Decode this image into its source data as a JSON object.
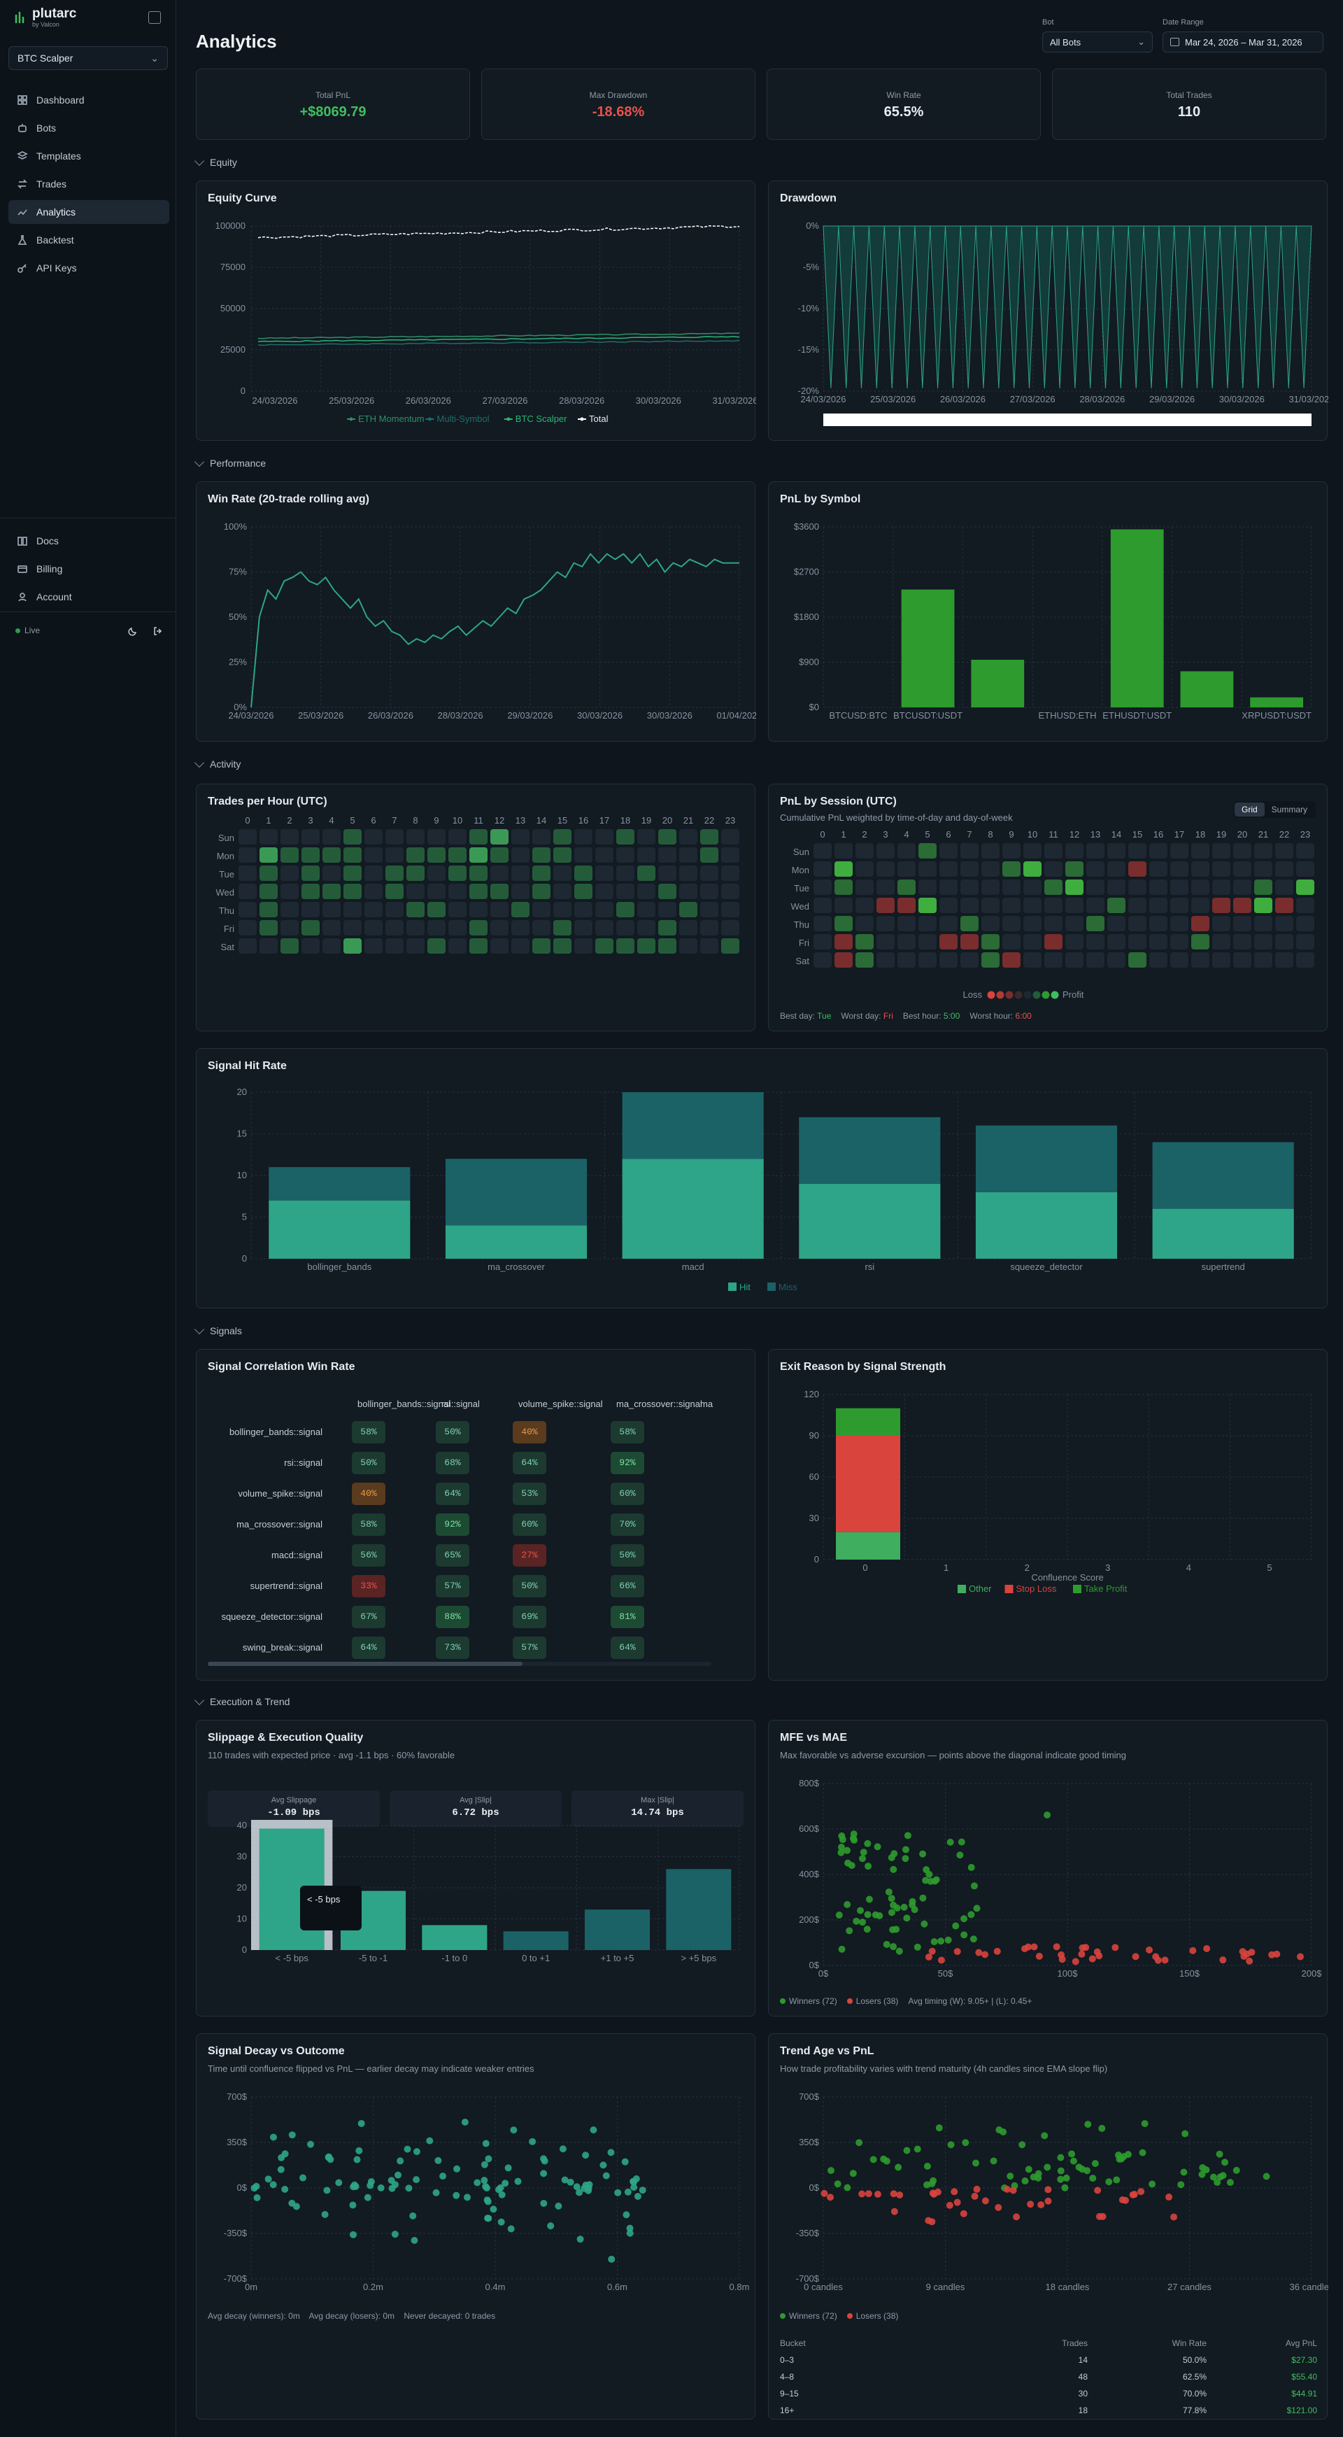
{
  "app": {
    "name": "plutarc",
    "subtitle": "by Valcon"
  },
  "sidebar": {
    "bot_select": "BTC Scalper",
    "nav": [
      {
        "label": "Dashboard",
        "icon": "grid-icon"
      },
      {
        "label": "Bots",
        "icon": "bot-icon"
      },
      {
        "label": "Templates",
        "icon": "layers-icon"
      },
      {
        "label": "Trades",
        "icon": "swap-icon"
      },
      {
        "label": "Analytics",
        "icon": "trend-icon",
        "active": true
      },
      {
        "label": "Backtest",
        "icon": "flask-icon"
      },
      {
        "label": "API Keys",
        "icon": "key-icon"
      }
    ],
    "bottom_nav": [
      {
        "label": "Docs",
        "icon": "book-icon"
      },
      {
        "label": "Billing",
        "icon": "card-icon"
      },
      {
        "label": "Account",
        "icon": "user-icon"
      }
    ],
    "status": "Live"
  },
  "header": {
    "title": "Analytics",
    "bot_label": "Bot",
    "bot_value": "All Bots",
    "date_label": "Date Range",
    "date_value": "Mar 24, 2026 – Mar 31, 2026"
  },
  "kpis": [
    {
      "label": "Total PnL",
      "value": "+$8069.79",
      "color": "#3fbf5f"
    },
    {
      "label": "Max Drawdown",
      "value": "-18.68%",
      "color": "#e5534b"
    },
    {
      "label": "Win Rate",
      "value": "65.5%",
      "color": "#e8edf2"
    },
    {
      "label": "Total Trades",
      "value": "110",
      "color": "#e8edf2"
    }
  ],
  "sections": {
    "equity": "Equity",
    "performance": "Performance",
    "activity": "Activity",
    "signals": "Signals",
    "execution": "Execution & Trend"
  },
  "equity_card": {
    "title": "Equity Curve",
    "chart_data": {
      "type": "line",
      "x_ticks": [
        "24/03/2026",
        "25/03/2026",
        "26/03/2026",
        "27/03/2026",
        "28/03/2026",
        "30/03/2026",
        "31/03/2026"
      ],
      "y_ticks": [
        "0",
        "25000",
        "50000",
        "75000",
        "100000"
      ],
      "ylim": [
        0,
        100000
      ],
      "series": [
        {
          "name": "ETH Momentum",
          "color": "#2f8f6b",
          "start": 32000,
          "end": 35000
        },
        {
          "name": "Multi-Symbol",
          "color": "#1f6e66",
          "start": 28000,
          "end": 30500
        },
        {
          "name": "BTC Scalper",
          "color": "#2bb673",
          "start": 30000,
          "end": 33000
        },
        {
          "name": "Total",
          "color": "#ffffff",
          "start": 93000,
          "end": 100000
        }
      ]
    }
  },
  "drawdown_card": {
    "title": "Drawdown",
    "chart_data": {
      "type": "area",
      "x_ticks": [
        "24/03/2026",
        "25/03/2026",
        "26/03/2026",
        "27/03/2026",
        "28/03/2026",
        "29/03/2026",
        "30/03/2026",
        "31/03/2026"
      ],
      "y_ticks": [
        "0%",
        "-5%",
        "-10%",
        "-15%",
        "-20%"
      ],
      "ylim": [
        -20,
        0
      ],
      "cycles": 32
    }
  },
  "winrate_card": {
    "title": "Win Rate (20-trade rolling avg)",
    "chart_data": {
      "type": "line",
      "x_ticks": [
        "24/03/2026",
        "25/03/2026",
        "26/03/2026",
        "28/03/2026",
        "29/03/2026",
        "30/03/2026",
        "30/03/2026",
        "01/04/2026"
      ],
      "y_ticks": [
        "0%",
        "25%",
        "50%",
        "75%",
        "100%"
      ],
      "ylim": [
        0,
        100
      ],
      "values": [
        0,
        50,
        65,
        60,
        70,
        72,
        75,
        70,
        68,
        72,
        65,
        60,
        55,
        60,
        50,
        45,
        48,
        42,
        40,
        35,
        38,
        36,
        40,
        38,
        42,
        45,
        40,
        44,
        48,
        45,
        50,
        55,
        52,
        60,
        62,
        65,
        70,
        75,
        72,
        80,
        78,
        85,
        80,
        85,
        82,
        85,
        80,
        85,
        78,
        82,
        75,
        80,
        78,
        82,
        80,
        78,
        82,
        80,
        80,
        80
      ]
    }
  },
  "pnl_symbol_card": {
    "title": "PnL by Symbol",
    "chart_data": {
      "type": "bar",
      "categories": [
        "BTCUSD:BTC",
        "BTCUSDT:USDT",
        "",
        "ETHUSD:ETH",
        "ETHUSDT:USDT",
        "",
        "XRPUSDT:USDT"
      ],
      "values": [
        0,
        2350,
        950,
        0,
        3550,
        720,
        200
      ],
      "y_ticks": [
        "$0",
        "$900",
        "$1800",
        "$2700",
        "$3600"
      ],
      "ylim": [
        0,
        3600
      ]
    }
  },
  "trades_hour_card": {
    "title": "Trades per Hour (UTC)",
    "hours": [
      "0",
      "1",
      "2",
      "3",
      "4",
      "5",
      "6",
      "7",
      "8",
      "9",
      "10",
      "11",
      "12",
      "13",
      "14",
      "15",
      "16",
      "17",
      "18",
      "19",
      "20",
      "21",
      "22",
      "23"
    ],
    "days": [
      "Sun",
      "Mon",
      "Tue",
      "Wed",
      "Thu",
      "Fri",
      "Sat"
    ],
    "chart_data": {
      "type": "heatmap",
      "values": [
        [
          0,
          0,
          0,
          0,
          0,
          1,
          0,
          0,
          0,
          0,
          0,
          1,
          2,
          0,
          0,
          1,
          0,
          0,
          1,
          0,
          1,
          0,
          1,
          0
        ],
        [
          0,
          2,
          1,
          1,
          1,
          1,
          0,
          0,
          1,
          1,
          1,
          2,
          1,
          0,
          1,
          1,
          0,
          0,
          0,
          0,
          0,
          0,
          1,
          0
        ],
        [
          0,
          1,
          0,
          1,
          0,
          1,
          0,
          1,
          1,
          0,
          1,
          1,
          0,
          0,
          1,
          0,
          1,
          0,
          0,
          1,
          0,
          0,
          0,
          0
        ],
        [
          0,
          1,
          0,
          1,
          1,
          1,
          0,
          1,
          0,
          0,
          0,
          1,
          1,
          0,
          1,
          0,
          1,
          0,
          0,
          0,
          1,
          0,
          0,
          0
        ],
        [
          0,
          1,
          0,
          0,
          0,
          0,
          0,
          0,
          1,
          1,
          0,
          0,
          0,
          1,
          0,
          0,
          0,
          0,
          1,
          0,
          0,
          1,
          0,
          0
        ],
        [
          0,
          1,
          0,
          1,
          0,
          0,
          0,
          0,
          0,
          0,
          0,
          1,
          0,
          0,
          0,
          1,
          0,
          0,
          0,
          0,
          1,
          0,
          0,
          0
        ],
        [
          0,
          0,
          1,
          0,
          0,
          2,
          0,
          0,
          0,
          1,
          0,
          1,
          0,
          0,
          1,
          1,
          0,
          1,
          1,
          1,
          1,
          0,
          0,
          1
        ]
      ]
    }
  },
  "session_card": {
    "title": "PnL by Session (UTC)",
    "subtitle": "Cumulative PnL weighted by time-of-day and day-of-week",
    "toggle": [
      "Grid",
      "Summary"
    ],
    "hours": [
      "0",
      "1",
      "2",
      "3",
      "4",
      "5",
      "6",
      "7",
      "8",
      "9",
      "10",
      "11",
      "12",
      "13",
      "14",
      "15",
      "16",
      "17",
      "18",
      "19",
      "20",
      "21",
      "22",
      "23"
    ],
    "days": [
      "Sun",
      "Mon",
      "Tue",
      "Wed",
      "Thu",
      "Fri",
      "Sat"
    ],
    "legend_loss": "Loss",
    "legend_profit": "Profit",
    "chart_data": {
      "type": "heatmap",
      "values": [
        [
          0,
          0,
          0,
          0,
          0,
          1,
          0,
          0,
          0,
          0,
          0,
          0,
          0,
          0,
          0,
          0,
          0,
          0,
          0,
          0,
          0,
          0,
          0,
          0
        ],
        [
          0,
          2,
          0,
          0,
          0,
          0,
          0,
          0,
          0,
          1,
          2,
          0,
          1,
          0,
          0,
          -1,
          0,
          0,
          0,
          0,
          0,
          0,
          0,
          0
        ],
        [
          0,
          1,
          0,
          0,
          1,
          0,
          0,
          0,
          0,
          0,
          0,
          1,
          2,
          0,
          0,
          0,
          0,
          0,
          0,
          0,
          0,
          1,
          0,
          2
        ],
        [
          0,
          0,
          0,
          -1,
          -1,
          2,
          0,
          0,
          0,
          0,
          0,
          0,
          0,
          0,
          1,
          0,
          0,
          0,
          0,
          -1,
          -1,
          2,
          -1,
          0
        ],
        [
          0,
          1,
          0,
          0,
          0,
          0,
          0,
          1,
          0,
          0,
          0,
          0,
          0,
          1,
          0,
          0,
          0,
          0,
          -1,
          0,
          0,
          0,
          0,
          0
        ],
        [
          0,
          -1,
          1,
          0,
          0,
          0,
          -1,
          -1,
          1,
          0,
          0,
          -1,
          0,
          0,
          0,
          0,
          0,
          0,
          1,
          0,
          0,
          0,
          0,
          0
        ],
        [
          0,
          -1,
          1,
          0,
          0,
          0,
          0,
          0,
          1,
          -1,
          0,
          0,
          0,
          0,
          0,
          1,
          0,
          0,
          0,
          0,
          0,
          0,
          0,
          0
        ]
      ]
    },
    "footer": {
      "best_day_label": "Best day:",
      "best_day": "Tue",
      "worst_day_label": "Worst day:",
      "worst_day": "Fri",
      "best_hour_label": "Best hour:",
      "best_hour": "5:00",
      "worst_hour_label": "Worst hour:",
      "worst_hour": "6:00"
    }
  },
  "signal_hit_card": {
    "title": "Signal Hit Rate",
    "chart_data": {
      "type": "bar",
      "categories": [
        "bollinger_bands",
        "ma_crossover",
        "macd",
        "rsi",
        "squeeze_detector",
        "supertrend"
      ],
      "series": [
        {
          "name": "Hit",
          "values": [
            7,
            4,
            12,
            9,
            8,
            6
          ],
          "color": "#2ea588"
        },
        {
          "name": "Miss",
          "values": [
            4,
            8,
            8,
            8,
            8,
            8
          ],
          "color": "#1b6266"
        }
      ],
      "y_ticks": [
        "0",
        "5",
        "10",
        "15",
        "20"
      ],
      "ylim": [
        0,
        20
      ]
    }
  },
  "corr_card": {
    "title": "Signal Correlation Win Rate",
    "columns": [
      "bollinger_bands::signal",
      "rsi::signal",
      "volume_spike::signal",
      "ma_crossover::signal",
      "ma"
    ],
    "rows": [
      {
        "label": "bollinger_bands::signal",
        "cells": [
          "58%",
          "50%",
          "40%",
          "58%"
        ]
      },
      {
        "label": "rsi::signal",
        "cells": [
          "50%",
          "68%",
          "64%",
          "92%"
        ]
      },
      {
        "label": "volume_spike::signal",
        "cells": [
          "40%",
          "64%",
          "53%",
          "60%"
        ]
      },
      {
        "label": "ma_crossover::signal",
        "cells": [
          "58%",
          "92%",
          "60%",
          "70%"
        ]
      },
      {
        "label": "macd::signal",
        "cells": [
          "56%",
          "65%",
          "27%",
          "50%"
        ]
      },
      {
        "label": "supertrend::signal",
        "cells": [
          "33%",
          "57%",
          "50%",
          "66%"
        ]
      },
      {
        "label": "squeeze_detector::signal",
        "cells": [
          "67%",
          "88%",
          "69%",
          "81%"
        ]
      },
      {
        "label": "swing_break::signal",
        "cells": [
          "64%",
          "73%",
          "57%",
          "64%"
        ]
      }
    ]
  },
  "exit_card": {
    "title": "Exit Reason by Signal Strength",
    "chart_data": {
      "type": "bar",
      "xlabel": "Confluence Score",
      "x_ticks": [
        "0",
        "1",
        "2",
        "3",
        "4",
        "5"
      ],
      "y_ticks": [
        "0",
        "30",
        "60",
        "90",
        "120"
      ],
      "ylim": [
        0,
        120
      ],
      "series": [
        {
          "name": "Other",
          "value": 20,
          "color": "#3fae5f"
        },
        {
          "name": "Stop Loss",
          "value": 70,
          "color": "#d9443d"
        },
        {
          "name": "Take Profit",
          "value": 20,
          "color": "#2e9b2e"
        }
      ]
    }
  },
  "slippage_card": {
    "title": "Slippage & Execution Quality",
    "subtitle": "110 trades with expected price · avg -1.1 bps · 60% favorable",
    "stats": [
      {
        "label": "Avg Slippage",
        "value": "-1.09 bps"
      },
      {
        "label": "Avg |Slip|",
        "value": "6.72 bps"
      },
      {
        "label": "Max |Slip|",
        "value": "14.74 bps"
      }
    ],
    "tooltip": "< -5 bps",
    "chart_data": {
      "type": "bar",
      "categories": [
        "< -5 bps",
        "-5 to -1",
        "-1 to 0",
        "0 to +1",
        "+1 to +5",
        "> +5 bps"
      ],
      "values": [
        39,
        19,
        8,
        6,
        13,
        26
      ],
      "y_ticks": [
        "0",
        "10",
        "20",
        "30",
        "40"
      ],
      "ylim": [
        0,
        40
      ]
    }
  },
  "mfe_card": {
    "title": "MFE vs MAE",
    "subtitle": "Max favorable vs adverse excursion — points above the diagonal indicate good timing",
    "legend": [
      "Winners (72)",
      "Losers (38)"
    ],
    "timing": "Avg timing (W): 9.05+ | (L): 0.45+",
    "chart_data": {
      "type": "scatter",
      "x_ticks": [
        "0$",
        "50$",
        "100$",
        "150$",
        "200$"
      ],
      "y_ticks": [
        "0$",
        "200$",
        "400$",
        "600$",
        "800$"
      ],
      "xlim": [
        0,
        200
      ],
      "ylim": [
        0,
        800
      ]
    }
  },
  "decay_card": {
    "title": "Signal Decay vs Outcome",
    "subtitle": "Time until confluence flipped vs PnL — earlier decay may indicate weaker entries",
    "footer": "Avg decay (winners): 0m    Avg decay (losers): 0m    Never decayed: 0 trades",
    "chart_data": {
      "type": "scatter",
      "x_ticks": [
        "0m",
        "0.2m",
        "0.4m",
        "0.6m",
        "0.8m"
      ],
      "y_ticks": [
        "700$",
        "350$",
        "0$",
        "-350$",
        "-700$"
      ],
      "ylim": [
        -700,
        700
      ]
    }
  },
  "trend_card": {
    "title": "Trend Age vs PnL",
    "subtitle": "How trade profitability varies with trend maturity (4h candles since EMA slope flip)",
    "legend": [
      "Winners (72)",
      "Losers (38)"
    ],
    "chart_data": {
      "type": "scatter",
      "x_ticks": [
        "0 candles",
        "9 candles",
        "18 candles",
        "27 candles",
        "36 candles"
      ],
      "y_ticks": [
        "700$",
        "350$",
        "0$",
        "-350$",
        "-700$"
      ],
      "ylim": [
        -700,
        700
      ]
    },
    "table": {
      "headers": [
        "Bucket",
        "Trades",
        "Win Rate",
        "Avg PnL"
      ],
      "rows": [
        [
          "0–3",
          "14",
          "50.0%",
          "$27.30"
        ],
        [
          "4–8",
          "48",
          "62.5%",
          "$55.40"
        ],
        [
          "9–15",
          "30",
          "70.0%",
          "$44.91"
        ],
        [
          "16+",
          "18",
          "77.8%",
          "$121.00"
        ]
      ]
    }
  },
  "colors": {
    "green": "#2e9b2e",
    "red": "#d9443d",
    "teal": "#2ea588",
    "accent": "#3fbf5f"
  }
}
